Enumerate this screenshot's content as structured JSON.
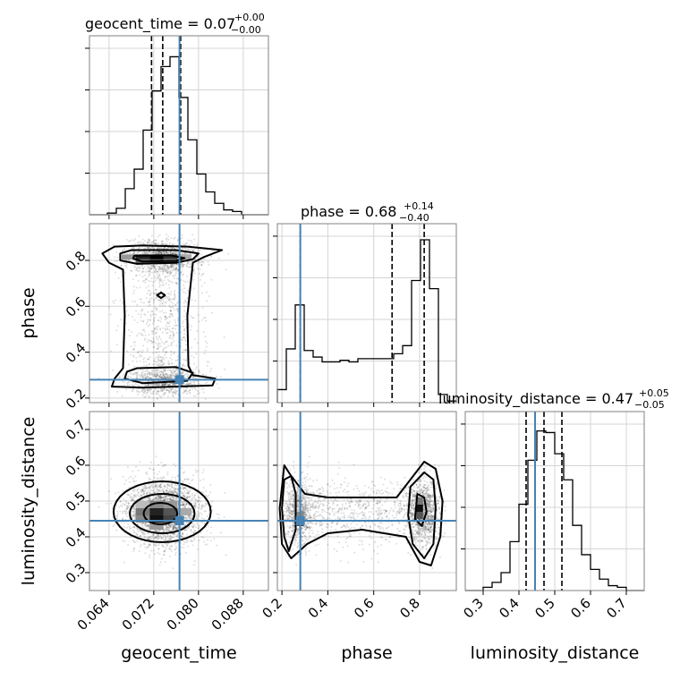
{
  "chart_data": {
    "type": "corner",
    "parameters": [
      "geocent_time",
      "phase",
      "luminosity_distance"
    ],
    "truths": {
      "geocent_time": 0.0766,
      "phase": 0.28,
      "luminosity_distance": 0.445
    },
    "truth_color": "#4682b4",
    "titles": {
      "geocent_time": {
        "text": "geocent_time = 0.07",
        "plus": "+0.00",
        "minus": "−0.00"
      },
      "phase": {
        "text": "phase = 0.68",
        "plus": "+0.14",
        "minus": "−0.40"
      },
      "luminosity_distance": {
        "text": "luminosity_distance = 0.47",
        "plus": "+0.05",
        "minus": "−0.05"
      }
    },
    "axis_labels": {
      "geocent_time": "geocent_time",
      "phase": "phase",
      "luminosity_distance": "luminosity_distance"
    },
    "tick_labels": {
      "geocent_time": [
        "0.064",
        "0.072",
        "0.080",
        "0.088"
      ],
      "phase": [
        "0.2",
        "0.4",
        "0.6",
        "0.8"
      ],
      "luminosity_distance": [
        "0.3",
        "0.4",
        "0.5",
        "0.6",
        "0.7"
      ]
    },
    "ticks": {
      "geocent_time": [
        0.064,
        0.072,
        0.08,
        0.088
      ],
      "phase": [
        0.2,
        0.4,
        0.6,
        0.8
      ],
      "luminosity_distance": [
        0.3,
        0.4,
        0.5,
        0.6,
        0.7
      ]
    },
    "ranges": {
      "geocent_time": [
        0.0605,
        0.0925
      ],
      "phase": [
        0.18,
        0.96
      ],
      "luminosity_distance": [
        0.25,
        0.75
      ]
    },
    "quantile_lines": {
      "geocent_time": [
        0.0716,
        0.0736,
        0.0768
      ],
      "phase": [
        0.28,
        0.68,
        0.82
      ],
      "luminosity_distance": [
        0.42,
        0.47,
        0.52
      ]
    },
    "histograms": {
      "geocent_time": {
        "edges_start": 0.0605,
        "bin_width": 0.0016,
        "counts": [
          0.0,
          0.0,
          0.01,
          0.04,
          0.16,
          0.28,
          0.52,
          0.76,
          0.91,
          0.97,
          0.72,
          0.46,
          0.25,
          0.14,
          0.07,
          0.03,
          0.02,
          0.0,
          0.0,
          0.0
        ]
      },
      "phase": {
        "edges_start": 0.18,
        "bin_width": 0.039,
        "counts": [
          0.08,
          0.33,
          0.6,
          0.32,
          0.28,
          0.25,
          0.25,
          0.26,
          0.25,
          0.27,
          0.27,
          0.27,
          0.27,
          0.3,
          0.35,
          0.75,
          1.0,
          0.7,
          0.05,
          0.01
        ]
      },
      "luminosity_distance": {
        "edges_start": 0.25,
        "bin_width": 0.025,
        "counts": [
          0.0,
          0.0,
          0.02,
          0.05,
          0.11,
          0.3,
          0.53,
          0.8,
          0.98,
          0.97,
          0.84,
          0.68,
          0.4,
          0.22,
          0.13,
          0.07,
          0.03,
          0.02,
          0.0,
          0.0
        ]
      }
    },
    "grid": true
  }
}
